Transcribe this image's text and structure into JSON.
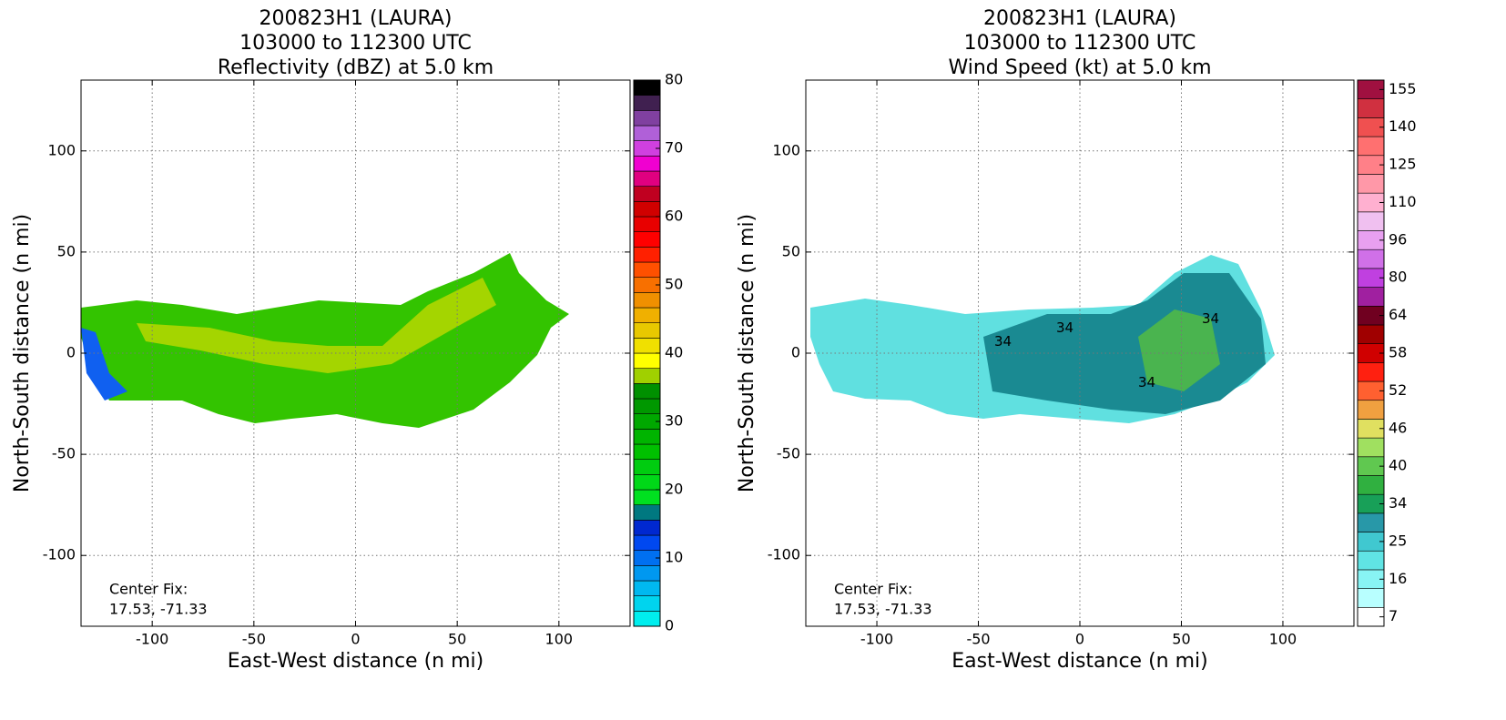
{
  "chart_data": [
    {
      "type": "heatmap",
      "title": [
        "200823H1 (LAURA)",
        "103000 to 112300 UTC",
        "Reflectivity (dBZ) at 5.0 km"
      ],
      "xlabel": "East-West distance (n mi)",
      "ylabel": "North-South distance (n mi)",
      "xlim": [
        -135,
        135
      ],
      "ylim": [
        -135,
        135
      ],
      "xticks": [
        -100,
        -50,
        0,
        50,
        100
      ],
      "yticks": [
        -100,
        -50,
        0,
        50,
        100
      ],
      "grid": true,
      "annotation": [
        "Center Fix:",
        "17.53, -71.33"
      ],
      "colorbar": {
        "lim": [
          0,
          80
        ],
        "ticks": [
          0,
          10,
          20,
          30,
          40,
          50,
          60,
          70,
          80
        ],
        "colors": [
          "#00eeee",
          "#00d4ee",
          "#00b8f0",
          "#0098f0",
          "#0070f0",
          "#0048f0",
          "#0028d0",
          "#007880",
          "#00e020",
          "#00d818",
          "#00cc10",
          "#00c000",
          "#00b400",
          "#00a800",
          "#009800",
          "#009000",
          "#a0d000",
          "#ffff00",
          "#f0e000",
          "#e8c800",
          "#f0b000",
          "#f09000",
          "#f87000",
          "#ff5000",
          "#ff2000",
          "#ff0000",
          "#e80000",
          "#d00000",
          "#c00020",
          "#e00080",
          "#f000d0",
          "#d040e0",
          "#b060d8",
          "#8040a0",
          "#402050",
          "#000000"
        ]
      }
    },
    {
      "type": "heatmap",
      "title": [
        "200823H1 (LAURA)",
        "103000 to 112300 UTC",
        "Wind Speed (kt) at 5.0 km"
      ],
      "xlabel": "East-West distance (n mi)",
      "ylabel": "North-South distance (n mi)",
      "xlim": [
        -135,
        135
      ],
      "ylim": [
        -135,
        135
      ],
      "xticks": [
        -100,
        -50,
        0,
        50,
        100
      ],
      "yticks": [
        -100,
        -50,
        0,
        50,
        100
      ],
      "grid": true,
      "annotation": [
        "Center Fix:",
        "17.53, -71.33"
      ],
      "contour_labels": [
        "34",
        "34",
        "34",
        "34"
      ],
      "colorbar": {
        "ticks": [
          7,
          16,
          25,
          34,
          40,
          46,
          52,
          58,
          64,
          80,
          96,
          110,
          125,
          140,
          155
        ],
        "colors": [
          "#ffffff",
          "#b8ffff",
          "#88f4f4",
          "#60e4e4",
          "#40c8d0",
          "#2898a8",
          "#18a058",
          "#30b040",
          "#60c850",
          "#a0e060",
          "#e0e060",
          "#f0a040",
          "#ff6030",
          "#ff2010",
          "#d00000",
          "#a00000",
          "#700020",
          "#a020a0",
          "#c040e0",
          "#d070e8",
          "#e8a0f0",
          "#f0c0f0",
          "#ffb0d0",
          "#ff98a8",
          "#ff8088",
          "#ff7070",
          "#f05050",
          "#d03040",
          "#a01040"
        ]
      }
    }
  ]
}
